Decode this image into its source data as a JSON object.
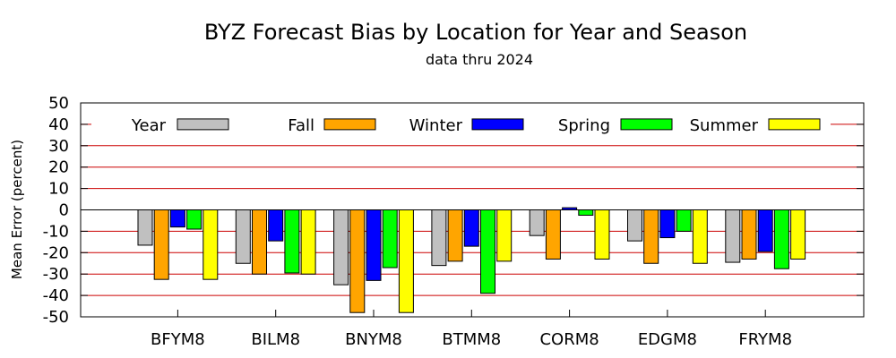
{
  "chart_data": {
    "type": "bar",
    "title": "BYZ Forecast Bias by Location for Year and Season",
    "subtitle": "data thru 2024",
    "xlabel": "",
    "ylabel": "Mean Error (percent)",
    "ylim": [
      -50,
      50
    ],
    "yticks": [
      50,
      40,
      30,
      20,
      10,
      0,
      -10,
      -20,
      -30,
      -40,
      -50
    ],
    "grid": true,
    "legend_position": "top",
    "categories": [
      "BFYM8",
      "BILM8",
      "BNYM8",
      "BTMM8",
      "CORM8",
      "EDGM8",
      "FRYM8"
    ],
    "series": [
      {
        "name": "Year",
        "color": "#c0c0c0",
        "values": [
          -16.5,
          -25,
          -35,
          -26,
          -12,
          -14.5,
          -24.5
        ]
      },
      {
        "name": "Fall",
        "color": "#ffa500",
        "values": [
          -32.5,
          -30,
          -48,
          -24,
          -23,
          -25,
          -23
        ]
      },
      {
        "name": "Winter",
        "color": "#0000ff",
        "values": [
          -8,
          -14.5,
          -33,
          -17,
          1,
          -13,
          -19.5
        ]
      },
      {
        "name": "Spring",
        "color": "#00ff00",
        "values": [
          -9,
          -29.5,
          -27,
          -39,
          -2.5,
          -10,
          -27.5
        ]
      },
      {
        "name": "Summer",
        "color": "#ffff00",
        "values": [
          -32.5,
          -30,
          -48,
          -24,
          -23,
          -25,
          -23
        ]
      }
    ],
    "grid_color": "#cc0000"
  }
}
